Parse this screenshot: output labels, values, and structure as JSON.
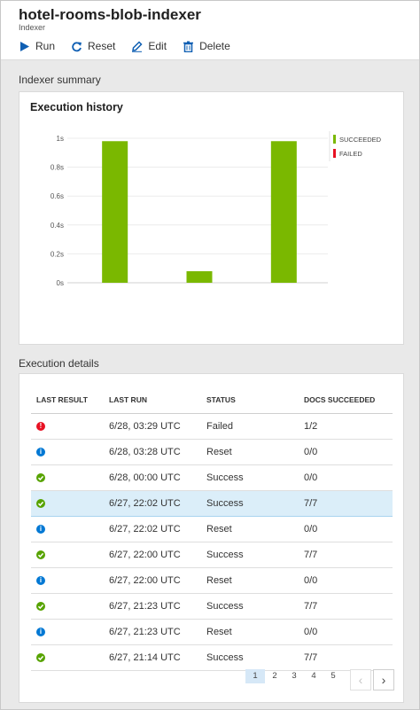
{
  "header": {
    "title": "hotel-rooms-blob-indexer",
    "subtitle": "Indexer"
  },
  "toolbar": {
    "run": "Run",
    "reset": "Reset",
    "edit": "Edit",
    "delete": "Delete"
  },
  "summary": {
    "label": "Indexer summary",
    "card_title": "Execution history"
  },
  "chart_data": {
    "type": "bar",
    "title": "Execution history",
    "y_tick_labels": [
      "1s",
      "0.8s",
      "0.6s",
      "0.4s",
      "0.2s",
      "0s"
    ],
    "ylim": [
      0,
      1
    ],
    "series": [
      {
        "name": "SUCCEEDED",
        "color": "#7ab800",
        "values": [
          0.98,
          0.08,
          0.98
        ]
      },
      {
        "name": "FAILED",
        "color": "#e81123",
        "values": []
      }
    ]
  },
  "details": {
    "label": "Execution details",
    "columns": [
      "LAST RESULT",
      "LAST RUN",
      "STATUS",
      "DOCS SUCCEEDED"
    ],
    "rows": [
      {
        "icon": "error-icon",
        "run": "6/28, 03:29 UTC",
        "status": "Failed",
        "docs": "1/2"
      },
      {
        "icon": "info-icon",
        "run": "6/28, 03:28 UTC",
        "status": "Reset",
        "docs": "0/0"
      },
      {
        "icon": "success-icon",
        "run": "6/28, 00:00 UTC",
        "status": "Success",
        "docs": "0/0"
      },
      {
        "icon": "success-icon",
        "run": "6/27, 22:02 UTC",
        "status": "Success",
        "docs": "7/7"
      },
      {
        "icon": "info-icon",
        "run": "6/27, 22:02 UTC",
        "status": "Reset",
        "docs": "0/0"
      },
      {
        "icon": "success-icon",
        "run": "6/27, 22:00 UTC",
        "status": "Success",
        "docs": "7/7"
      },
      {
        "icon": "info-icon",
        "run": "6/27, 22:00 UTC",
        "status": "Reset",
        "docs": "0/0"
      },
      {
        "icon": "success-icon",
        "run": "6/27, 21:23 UTC",
        "status": "Success",
        "docs": "7/7"
      },
      {
        "icon": "info-icon",
        "run": "6/27, 21:23 UTC",
        "status": "Reset",
        "docs": "0/0"
      },
      {
        "icon": "success-icon",
        "run": "6/27, 21:14 UTC",
        "status": "Success",
        "docs": "7/7"
      }
    ]
  },
  "pagination": {
    "pages": [
      "1",
      "2",
      "3",
      "4",
      "5"
    ],
    "active": "1"
  },
  "colors": {
    "success": "#57a300",
    "error": "#e81123",
    "info": "#0078d4",
    "selected_row": "#dbeef9"
  }
}
